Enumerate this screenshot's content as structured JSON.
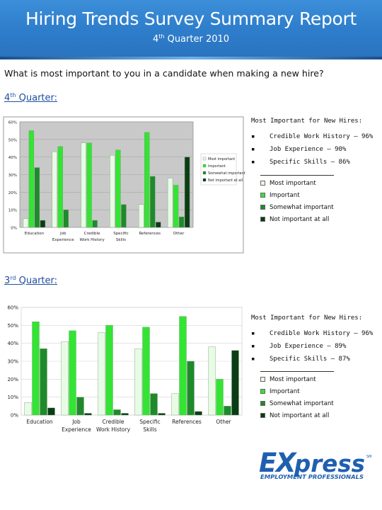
{
  "header": {
    "title": "Hiring Trends Survey Summary Report",
    "subtitle_sup": "th",
    "subtitle_pre": "4",
    "subtitle_post": " Quarter 2010"
  },
  "question": "What is most important to you in a candidate when making a new hire?",
  "sections": [
    {
      "label_num": "4",
      "label_sup": "th",
      "label_rest": " Quarter:",
      "summary_title": "Most Important for New Hires:",
      "summary_items": [
        {
          "bullet": "▪",
          "text": "Credible Work History – 96%"
        },
        {
          "bullet": "▪",
          "text": "Job Experience – 90%"
        },
        {
          "bullet": "▪",
          "text": "Specific Skills – 86%"
        }
      ]
    },
    {
      "label_num": "3",
      "label_sup": "rd",
      "label_rest": " Quarter:",
      "summary_title": "Most Important for New Hires:",
      "summary_items": [
        {
          "bullet": "▪",
          "text": "Credible Work History – 96%"
        },
        {
          "bullet": "▪",
          "text": "Job Experience – 89%"
        },
        {
          "bullet": "▪",
          "text": "Specific Skills – 87%"
        }
      ]
    }
  ],
  "legend": [
    {
      "label": "Most important",
      "color": "#e8fbe4"
    },
    {
      "label": "Important",
      "color": "#33e433"
    },
    {
      "label": "Somewhat important",
      "color": "#1f8a2a"
    },
    {
      "label": "Not important at all",
      "color": "#0b3d14"
    }
  ],
  "small_legend": [
    "Most important",
    "Important",
    "Somewhat important",
    "Not important at all"
  ],
  "logo": {
    "word_e": "E",
    "word_x": "X",
    "word_rest": "press",
    "tm": "SM",
    "tagline": "EMPLOYMENT PROFESSIONALS",
    "color": "#1f5fb0"
  },
  "chart_data": [
    {
      "type": "bar",
      "categories": [
        "Education",
        "Job Experience",
        "Credible Work History",
        "Specific Skills",
        "References",
        "Other"
      ],
      "category_lines": [
        [
          "Education"
        ],
        [
          "Job",
          "Experience"
        ],
        [
          "Credible",
          "Work History"
        ],
        [
          "Specific",
          "Skills"
        ],
        [
          "References"
        ],
        [
          "Other"
        ]
      ],
      "ylim": [
        0,
        60
      ],
      "yticks": [
        "0%",
        "10%",
        "20%",
        "30%",
        "40%",
        "50%",
        "60%"
      ],
      "series": [
        {
          "name": "Most important",
          "values": [
            5,
            43,
            48,
            41,
            13,
            28
          ]
        },
        {
          "name": "Important",
          "values": [
            55,
            46,
            48,
            44,
            54,
            24
          ]
        },
        {
          "name": "Somewhat important",
          "values": [
            34,
            10,
            4,
            13,
            29,
            6
          ]
        },
        {
          "name": "Not important at all",
          "values": [
            4,
            0,
            0,
            0,
            3,
            40
          ]
        }
      ]
    },
    {
      "type": "bar",
      "categories": [
        "Education",
        "Job Experience",
        "Credible Work History",
        "Specific Skills",
        "References",
        "Other"
      ],
      "category_lines": [
        [
          "Education"
        ],
        [
          "Job",
          "Experience"
        ],
        [
          "Credible",
          "Work History"
        ],
        [
          "Specific",
          "Skills"
        ],
        [
          "References"
        ],
        [
          "Other"
        ]
      ],
      "ylim": [
        0,
        60
      ],
      "yticks": [
        "0%",
        "10%",
        "20%",
        "30%",
        "40%",
        "50%",
        "60%"
      ],
      "series": [
        {
          "name": "Most important",
          "values": [
            7,
            41,
            46,
            37,
            12,
            38
          ]
        },
        {
          "name": "Important",
          "values": [
            52,
            47,
            50,
            49,
            55,
            20
          ]
        },
        {
          "name": "Somewhat important",
          "values": [
            37,
            10,
            3,
            12,
            30,
            5
          ]
        },
        {
          "name": "Not important at all",
          "values": [
            4,
            1,
            1,
            1,
            2,
            36
          ]
        }
      ]
    }
  ]
}
